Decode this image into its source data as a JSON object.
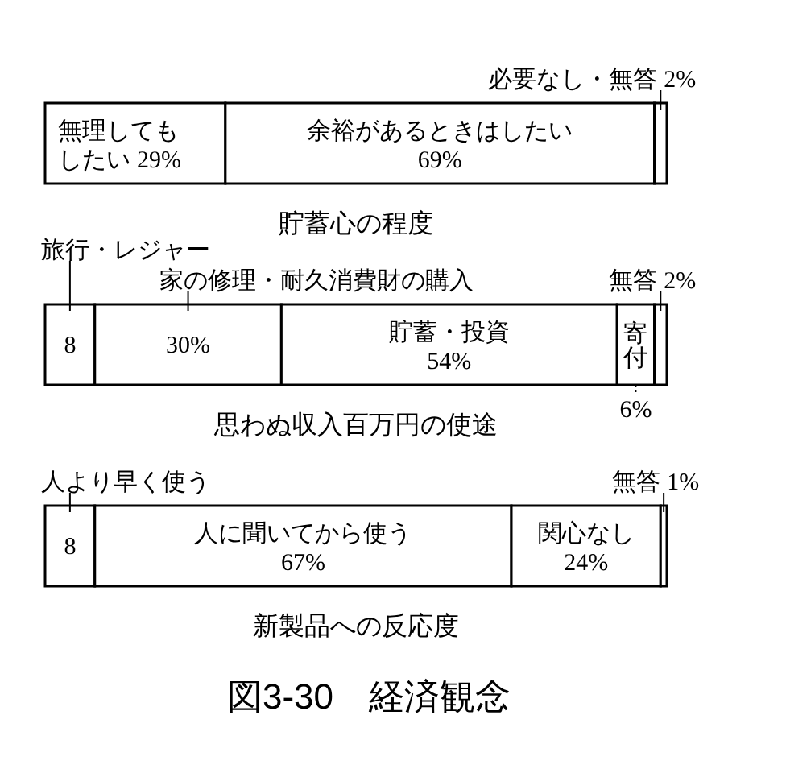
{
  "chart_data": [
    {
      "type": "bar",
      "orientation": "horizontal",
      "stacked": true,
      "title": "貯蓄心の程度",
      "categories": [
        null
      ],
      "xlim": [
        0,
        100
      ],
      "tick_labels": false,
      "series": [
        {
          "name": "無理してもしたい",
          "color": "#ffffff",
          "values": [
            29
          ],
          "value_labels": [
            "29%"
          ]
        },
        {
          "name": "余裕があるときはしたい",
          "color": "#ffffff",
          "values": [
            69
          ],
          "value_labels": [
            "69%"
          ]
        },
        {
          "name": "必要なし・無答",
          "color": "#ffffff",
          "values": [
            2
          ],
          "value_labels": [
            "2%"
          ]
        }
      ]
    },
    {
      "type": "bar",
      "orientation": "horizontal",
      "stacked": true,
      "title": "思わぬ収入百万円の使途",
      "categories": [
        null
      ],
      "xlim": [
        0,
        100
      ],
      "tick_labels": false,
      "series": [
        {
          "name": "旅行・レジャー",
          "color": "#ffffff",
          "values": [
            8
          ],
          "value_labels": [
            "8"
          ]
        },
        {
          "name": "家の修理・耐久消費財の購入",
          "color": "#ffffff",
          "values": [
            30
          ],
          "value_labels": [
            "30%"
          ]
        },
        {
          "name": "貯蓄・投資",
          "color": "#ffffff",
          "values": [
            54
          ],
          "value_labels": [
            "54%"
          ]
        },
        {
          "name": "寄付",
          "color": "#ffffff",
          "values": [
            6
          ],
          "value_labels": [
            "6%"
          ]
        },
        {
          "name": "無答",
          "color": "#ffffff",
          "values": [
            2
          ],
          "value_labels": [
            "2%"
          ]
        }
      ]
    },
    {
      "type": "bar",
      "orientation": "horizontal",
      "stacked": true,
      "title": "新製品への反応度",
      "categories": [
        null
      ],
      "xlim": [
        0,
        100
      ],
      "tick_labels": false,
      "annotations": [
        "図3-30　経済観念"
      ],
      "series": [
        {
          "name": "人より早く使う",
          "color": "#ffffff",
          "values": [
            8
          ],
          "value_labels": [
            "8"
          ]
        },
        {
          "name": "人に聞いてから使う",
          "color": "#ffffff",
          "values": [
            67
          ],
          "value_labels": [
            "67%"
          ]
        },
        {
          "name": "関心なし",
          "color": "#ffffff",
          "values": [
            24
          ],
          "value_labels": [
            "24%"
          ]
        },
        {
          "name": "無答",
          "color": "#ffffff",
          "values": [
            1
          ],
          "value_labels": [
            "1%"
          ]
        }
      ]
    }
  ]
}
